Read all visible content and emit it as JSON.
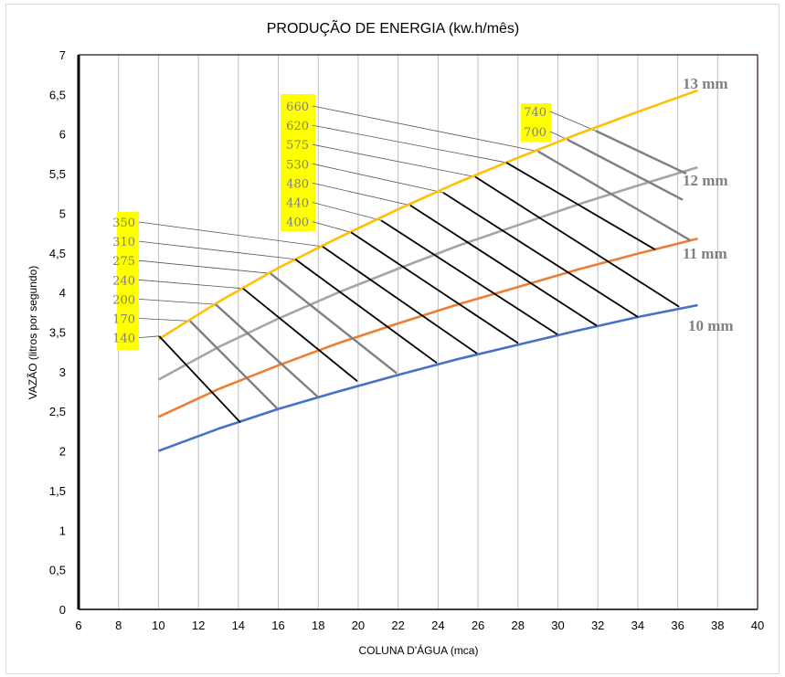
{
  "chart_data": {
    "type": "line",
    "title": "PRODUÇÃO  DE ENERGIA  (kw.h/mês)",
    "xlabel": "COLUNA D'ÁGUA (mca)",
    "ylabel": "VAZÃO (litros por segundo)",
    "xlim": [
      6,
      40
    ],
    "ylim": [
      0,
      7
    ],
    "x_ticks": [
      "6",
      "8",
      "10",
      "12",
      "14",
      "16",
      "18",
      "20",
      "22",
      "24",
      "26",
      "28",
      "30",
      "32",
      "34",
      "36",
      "38",
      "40"
    ],
    "y_ticks": [
      "0",
      "0,5",
      "1",
      "1,5",
      "2",
      "2,5",
      "3",
      "3,5",
      "4",
      "4,5",
      "5",
      "5,5",
      "6",
      "6,5",
      "7"
    ],
    "grid": "vertical",
    "x": [
      10,
      13,
      16,
      19,
      22,
      25,
      28,
      31,
      34,
      37
    ],
    "series": [
      {
        "name": "10 mm",
        "color": "#4472c4",
        "values": [
          2.0,
          2.28,
          2.53,
          2.75,
          2.96,
          3.16,
          3.34,
          3.52,
          3.69,
          3.84
        ]
      },
      {
        "name": "11 mm",
        "color": "#ed7d31",
        "values": [
          2.43,
          2.78,
          3.08,
          3.36,
          3.61,
          3.85,
          4.07,
          4.29,
          4.49,
          4.68
        ]
      },
      {
        "name": "12 mm",
        "color": "#a5a5a5",
        "values": [
          2.9,
          3.31,
          3.67,
          4.0,
          4.3,
          4.59,
          4.85,
          5.11,
          5.35,
          5.58
        ]
      },
      {
        "name": "13 mm",
        "color": "#ffc000",
        "values": [
          3.41,
          3.88,
          4.31,
          4.69,
          5.05,
          5.39,
          5.7,
          6.0,
          6.28,
          6.55
        ]
      }
    ],
    "energy_lines": [
      {
        "label": "140",
        "color": "#000000",
        "start": [
          10.03,
          3.45
        ],
        "end": [
          14.1,
          2.36
        ]
      },
      {
        "label": "170",
        "color": "#7f7f7f",
        "start": [
          11.58,
          3.64
        ],
        "end": [
          15.93,
          2.54
        ]
      },
      {
        "label": "200",
        "color": "#7f7f7f",
        "start": [
          12.86,
          3.85
        ],
        "end": [
          17.99,
          2.68
        ]
      },
      {
        "label": "240",
        "color": "#000000",
        "start": [
          14.24,
          4.05
        ],
        "end": [
          19.96,
          2.88
        ]
      },
      {
        "label": "275",
        "color": "#7f7f7f",
        "start": [
          15.61,
          4.24
        ],
        "end": [
          21.93,
          2.98
        ]
      },
      {
        "label": "310",
        "color": "#000000",
        "start": [
          16.85,
          4.42
        ],
        "end": [
          23.94,
          3.11
        ]
      },
      {
        "label": "350",
        "color": "#000000",
        "start": [
          18.22,
          4.58
        ],
        "end": [
          25.95,
          3.23
        ]
      },
      {
        "label": "400",
        "color": "#000000",
        "start": [
          19.64,
          4.76
        ],
        "end": [
          28.01,
          3.36
        ]
      },
      {
        "label": "440",
        "color": "#000000",
        "start": [
          21.15,
          4.91
        ],
        "end": [
          29.98,
          3.47
        ]
      },
      {
        "label": "480",
        "color": "#000000",
        "start": [
          22.61,
          5.1
        ],
        "end": [
          31.95,
          3.58
        ]
      },
      {
        "label": "530",
        "color": "#000000",
        "start": [
          24.26,
          5.26
        ],
        "end": [
          34.01,
          3.69
        ]
      },
      {
        "label": "575",
        "color": "#000000",
        "start": [
          25.86,
          5.46
        ],
        "end": [
          36.07,
          3.82
        ]
      },
      {
        "label": "620",
        "color": "#000000",
        "start": [
          27.42,
          5.64
        ],
        "end": [
          34.88,
          4.54
        ]
      },
      {
        "label": "660",
        "color": "#7f7f7f",
        "start": [
          29.02,
          5.78
        ],
        "end": [
          36.62,
          4.66
        ]
      },
      {
        "label": "700",
        "color": "#7f7f7f",
        "start": [
          30.48,
          5.93
        ],
        "end": [
          36.25,
          5.17
        ]
      },
      {
        "label": "740",
        "color": "#7f7f7f",
        "start": [
          31.9,
          6.04
        ],
        "end": [
          36.43,
          5.5
        ]
      }
    ],
    "label_groups": [
      [
        "350",
        "310",
        "275",
        "240",
        "200",
        "170",
        "140"
      ],
      [
        "660",
        "620",
        "575",
        "530",
        "480",
        "440",
        "400"
      ],
      [
        "740",
        "700"
      ]
    ],
    "highlight_color": "#ffff00"
  }
}
